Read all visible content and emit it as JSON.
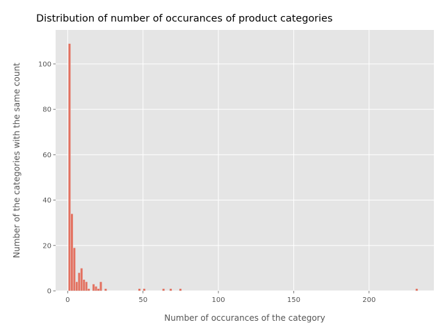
{
  "chart_data": {
    "type": "bar",
    "title": "Distribution of number of occurances of product categories",
    "xlabel": "Number of occurances of the category",
    "ylabel": "Number of the categories with the same count",
    "xlim": [
      -8,
      243
    ],
    "ylim": [
      0,
      115
    ],
    "xticks": [
      0,
      50,
      100,
      150,
      200
    ],
    "yticks": [
      0,
      20,
      40,
      60,
      80,
      100
    ],
    "grid": true,
    "bar_color": "#E24A33",
    "background_color": "#E5E5E5",
    "bin_width": 1.6,
    "x": [
      1.2,
      2.8,
      4.4,
      6.0,
      7.6,
      9.2,
      10.8,
      12.4,
      14.0,
      17.2,
      18.8,
      20.4,
      22.0,
      25.2,
      47.6,
      50.8,
      63.6,
      68.4,
      74.8,
      231.6
    ],
    "values": [
      109,
      34,
      19,
      4,
      8,
      10,
      5,
      4,
      1,
      3,
      2,
      1,
      4,
      1,
      1,
      1,
      1,
      1,
      1,
      1
    ]
  }
}
